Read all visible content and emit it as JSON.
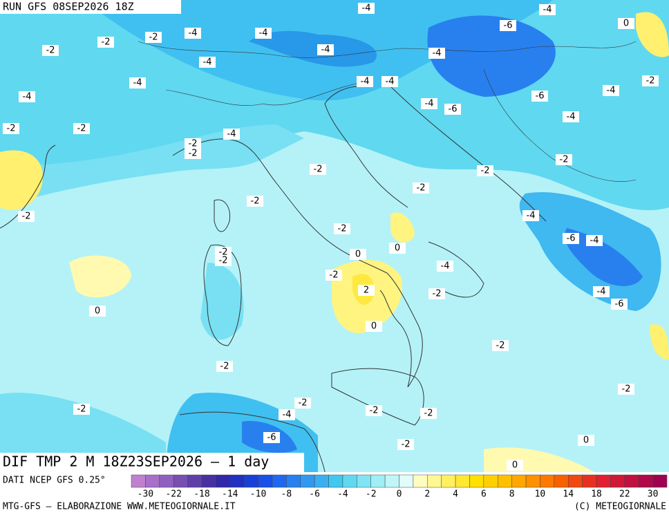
{
  "header": {
    "run": "RUN GFS 08SEP2026 18Z"
  },
  "map": {
    "title": "DIF TMP 2 M 18Z23SEP2026 – 1 day",
    "source": "DATI NCEP GFS 0.25°",
    "contour_labels": [
      -4,
      -4,
      0,
      -2,
      -4,
      -4,
      -6,
      -2,
      -2,
      -4,
      -4,
      -4,
      -2,
      -4,
      -4,
      -4,
      -4,
      -4,
      -6,
      -4,
      -6,
      -2,
      -2,
      -4,
      -4,
      -2,
      -2,
      -2,
      -2,
      -2,
      -2,
      -2,
      -2,
      -4,
      -2,
      -6,
      -4,
      0,
      0,
      -2,
      -2,
      -4,
      -2,
      2,
      -4,
      -2,
      -6,
      0,
      0,
      -2,
      -2,
      -2,
      -2,
      -2,
      -2,
      -2,
      -4,
      -6,
      0,
      -2,
      0
    ]
  },
  "legend": {
    "ticks": [
      -30,
      -22,
      -18,
      -14,
      -10,
      -8,
      -6,
      -4,
      -2,
      0,
      2,
      4,
      6,
      8,
      10,
      14,
      18,
      22,
      30
    ],
    "colors": [
      "#c080d0",
      "#a870c8",
      "#9060c0",
      "#7850b0",
      "#6040a8",
      "#4830a0",
      "#3028a8",
      "#2030c0",
      "#1840d8",
      "#1850e8",
      "#2068f0",
      "#2880f0",
      "#3098f0",
      "#38b0f0",
      "#40c8f0",
      "#60d8f0",
      "#80e4f4",
      "#a0eef6",
      "#c0f6f8",
      "#e0fcfc",
      "#fffcc0",
      "#fff890",
      "#fff060",
      "#ffe830",
      "#ffe000",
      "#ffd000",
      "#ffc000",
      "#ffa800",
      "#ff9000",
      "#ff7800",
      "#f86000",
      "#f04810",
      "#e83020",
      "#e02030",
      "#d01838",
      "#c01040",
      "#b00848",
      "#a00050"
    ]
  },
  "footer": {
    "left": "MTG-GFS – ELABORAZIONE WWW.METEOGIORNALE.IT",
    "right": "(C) METEOGIORNALE"
  }
}
